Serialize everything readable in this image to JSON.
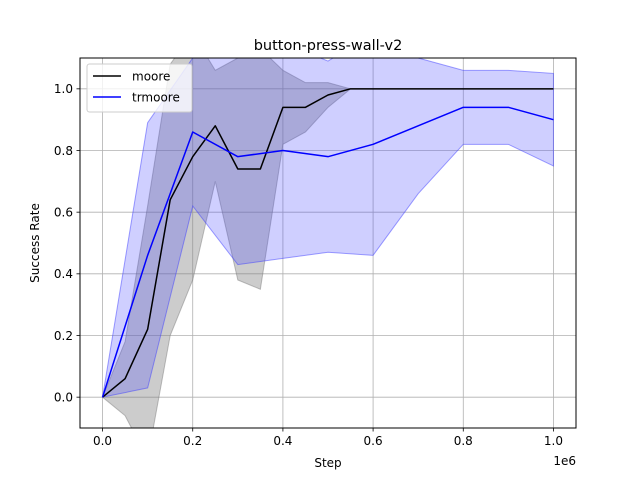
{
  "chart_data": {
    "type": "line",
    "title": "button-press-wall-v2",
    "xlabel": "Step",
    "ylabel": "Success Rate",
    "x_offset_label": "1e6",
    "xlim": [
      -0.05,
      1.05
    ],
    "ylim": [
      -0.1,
      1.1
    ],
    "x_ticks": [
      0.0,
      0.2,
      0.4,
      0.6,
      0.8,
      1.0
    ],
    "x_tick_labels": [
      "0.0",
      "0.2",
      "0.4",
      "0.6",
      "0.8",
      "1.0"
    ],
    "y_ticks": [
      0.0,
      0.2,
      0.4,
      0.6,
      0.8,
      1.0
    ],
    "y_tick_labels": [
      "0.0",
      "0.2",
      "0.4",
      "0.6",
      "0.8",
      "1.0"
    ],
    "grid": true,
    "legend_position": "top-left",
    "series": [
      {
        "name": "moore",
        "color": "#000000",
        "band_color": "#808080",
        "x": [
          0.0,
          0.05,
          0.1,
          0.15,
          0.2,
          0.25,
          0.3,
          0.35,
          0.4,
          0.45,
          0.5,
          0.55,
          0.6,
          0.7,
          0.8,
          0.9,
          1.0
        ],
        "y": [
          0.0,
          0.06,
          0.22,
          0.64,
          0.78,
          0.88,
          0.74,
          0.74,
          0.94,
          0.94,
          0.98,
          1.0,
          1.0,
          1.0,
          1.0,
          1.0,
          1.0
        ],
        "lower": [
          0.0,
          -0.06,
          -0.2,
          0.2,
          0.38,
          0.7,
          0.38,
          0.35,
          0.82,
          0.86,
          0.94,
          1.0,
          1.0,
          1.0,
          1.0,
          1.0,
          1.0
        ],
        "upper": [
          0.0,
          0.18,
          0.62,
          1.08,
          1.18,
          1.06,
          1.1,
          1.13,
          1.06,
          1.02,
          1.02,
          1.0,
          1.0,
          1.0,
          1.0,
          1.0,
          1.0
        ]
      },
      {
        "name": "trmoore",
        "color": "#0000ff",
        "band_color": "#4040ff",
        "x": [
          0.0,
          0.1,
          0.2,
          0.3,
          0.4,
          0.5,
          0.6,
          0.7,
          0.8,
          0.9,
          1.0
        ],
        "y": [
          0.0,
          0.46,
          0.86,
          0.78,
          0.8,
          0.78,
          0.82,
          0.88,
          0.94,
          0.94,
          0.9
        ],
        "lower": [
          0.0,
          0.03,
          0.62,
          0.43,
          0.45,
          0.47,
          0.46,
          0.66,
          0.82,
          0.82,
          0.75
        ],
        "upper": [
          0.0,
          0.89,
          1.1,
          1.13,
          1.15,
          1.09,
          1.18,
          1.1,
          1.06,
          1.06,
          1.05
        ]
      }
    ]
  }
}
